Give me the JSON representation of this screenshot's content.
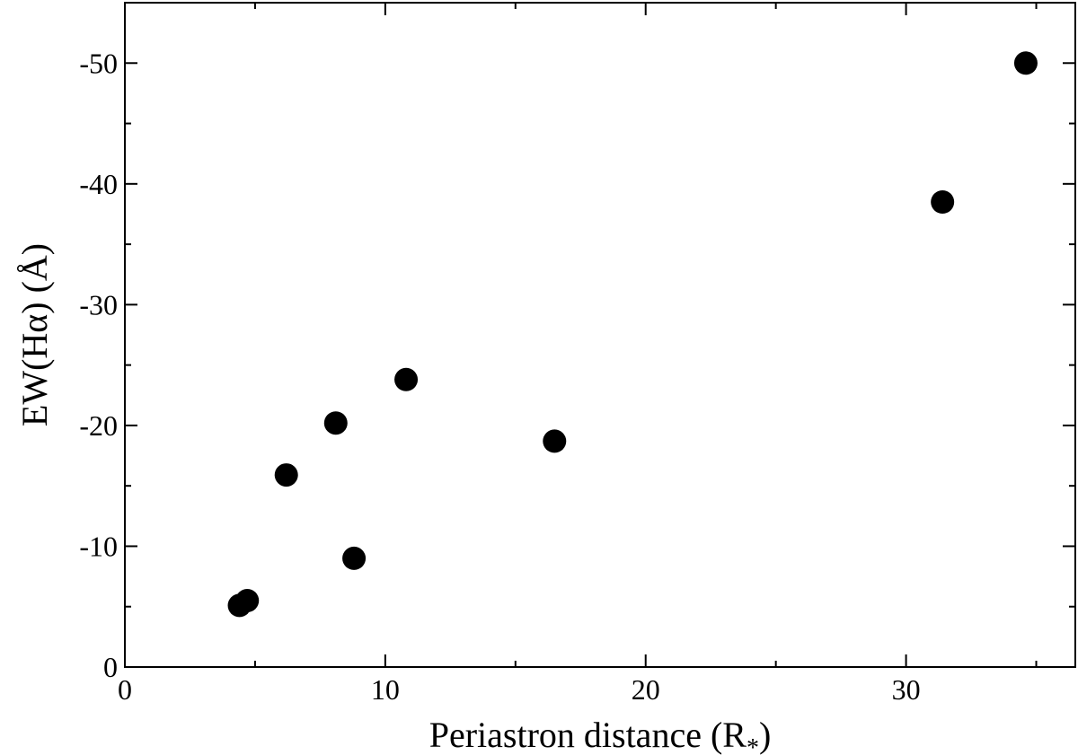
{
  "chart_data": {
    "type": "scatter",
    "xlabel": "Periastron distance (R",
    "xlabel_sub": "*",
    "xlabel_end": ")",
    "ylabel": "EW(Hα) (Å)",
    "xlim": [
      0,
      36.5
    ],
    "ylim": [
      0,
      -55
    ],
    "x_ticks": [
      0,
      10,
      20,
      30
    ],
    "y_ticks": [
      0,
      -10,
      -20,
      -30,
      -40,
      -50
    ],
    "x_tick_labels": [
      "0",
      "10",
      "20",
      "30"
    ],
    "y_tick_labels": [
      "0",
      "-10",
      "-20",
      "-30",
      "-40",
      "-50"
    ],
    "x_minor_step": 5,
    "y_minor_step": 5,
    "grid": false,
    "marker_color": "#000000",
    "points": [
      {
        "x": 4.4,
        "y": -5.1
      },
      {
        "x": 4.7,
        "y": -5.5
      },
      {
        "x": 6.2,
        "y": -15.9
      },
      {
        "x": 8.1,
        "y": -20.2
      },
      {
        "x": 8.8,
        "y": -9.0
      },
      {
        "x": 10.8,
        "y": -23.8
      },
      {
        "x": 16.5,
        "y": -18.7
      },
      {
        "x": 31.4,
        "y": -38.5
      },
      {
        "x": 34.6,
        "y": -50.0
      }
    ]
  }
}
